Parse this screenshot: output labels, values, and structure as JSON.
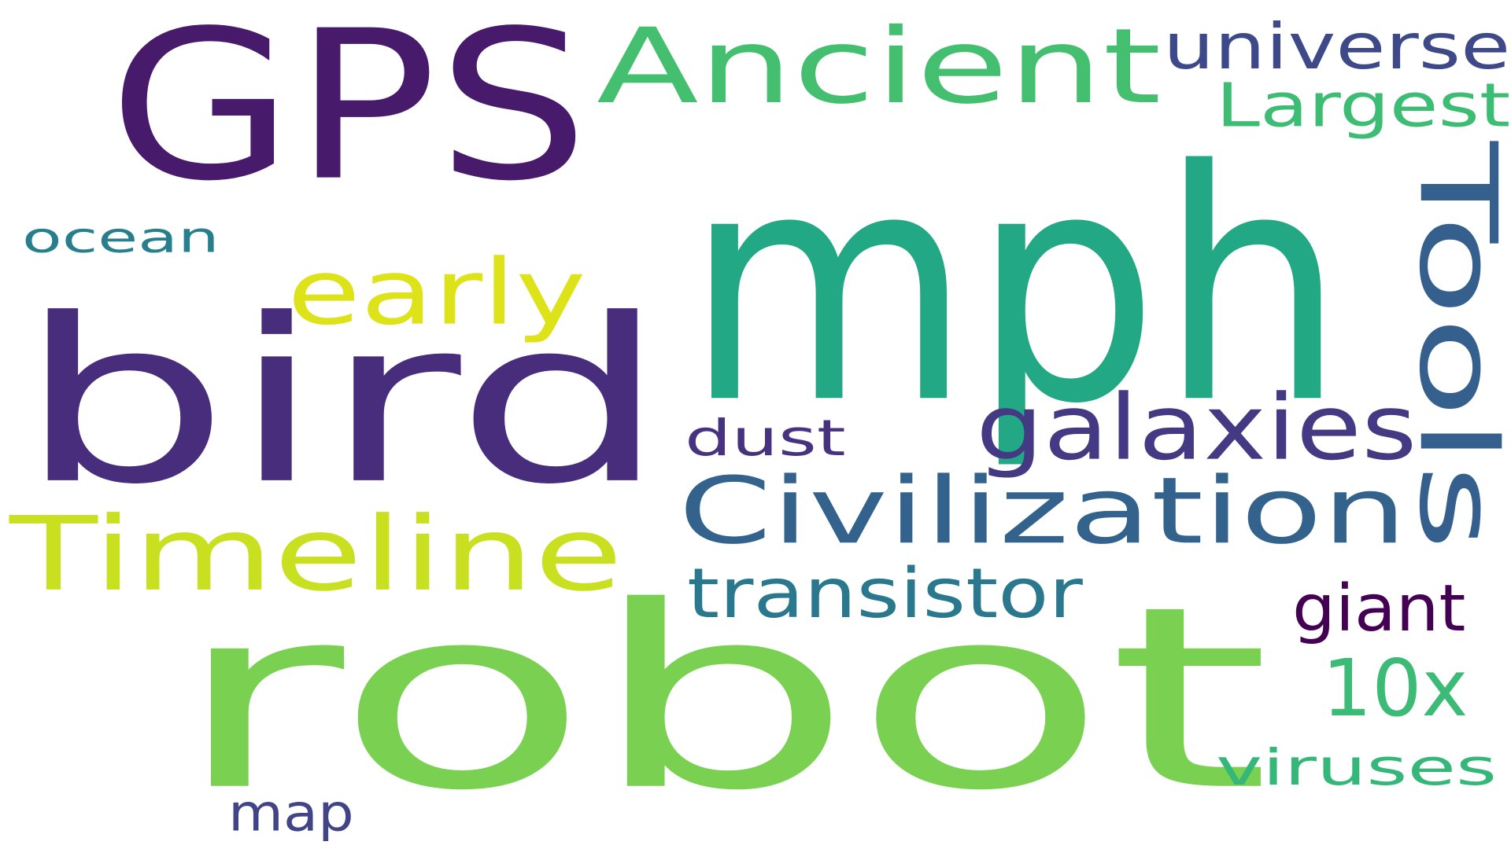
{
  "words": [
    {
      "id": "robot",
      "text": "robot",
      "color": "#7ad151"
    },
    {
      "id": "mph",
      "text": "mph",
      "color": "#22a884"
    },
    {
      "id": "bird",
      "text": "bird",
      "color": "#472d7b"
    },
    {
      "id": "gps",
      "text": "GPS",
      "color": "#481a6c"
    },
    {
      "id": "ancient",
      "text": "Ancient",
      "color": "#44bf70"
    },
    {
      "id": "tools",
      "text": "Tools",
      "color": "#355f8d"
    },
    {
      "id": "civilization",
      "text": "Civilization",
      "color": "#33638d"
    },
    {
      "id": "timeline",
      "text": "Timeline",
      "color": "#c8e020"
    },
    {
      "id": "galaxies",
      "text": "galaxies",
      "color": "#443983"
    },
    {
      "id": "early",
      "text": "early",
      "color": "#dde318"
    },
    {
      "id": "universe",
      "text": "universe",
      "color": "#3e4989"
    },
    {
      "id": "largest",
      "text": "Largest",
      "color": "#3dbc74"
    },
    {
      "id": "ten-x",
      "text": "10x",
      "color": "#3bbb75"
    },
    {
      "id": "transistor",
      "text": "transistor",
      "color": "#2a788e"
    },
    {
      "id": "viruses",
      "text": "viruses",
      "color": "#35b779"
    },
    {
      "id": "giant",
      "text": "giant",
      "color": "#440154"
    },
    {
      "id": "dust",
      "text": "dust",
      "color": "#46327e"
    },
    {
      "id": "ocean",
      "text": "ocean",
      "color": "#277f8e"
    },
    {
      "id": "map",
      "text": "map",
      "color": "#414487"
    }
  ]
}
